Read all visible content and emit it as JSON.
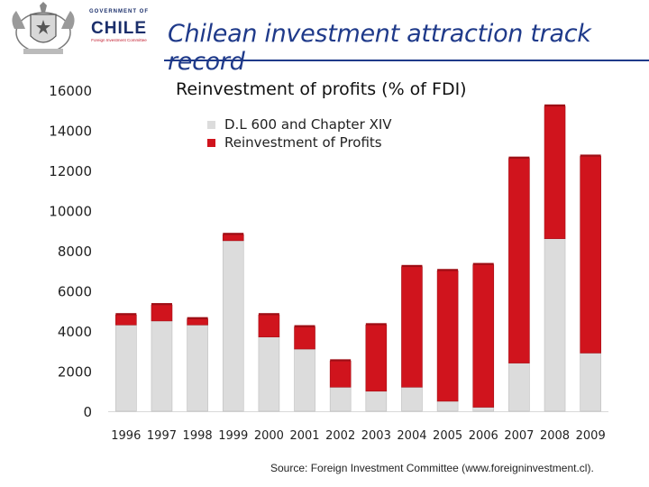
{
  "header": {
    "gov_line1": "GOVERNMENT OF",
    "gov_line2": "CHILE",
    "gov_line3": "Foreign Investment Committee",
    "title": "Chilean investment attraction track record",
    "logo_icon": "coat-of-arms-icon"
  },
  "colors": {
    "gray_series": "#dcdcdc",
    "red_series": "#d0141d",
    "title_blue": "#1f3a8a"
  },
  "chart_data": {
    "type": "bar",
    "stacked": true,
    "title": "Reinvestment of profits (% of FDI)",
    "xlabel": "",
    "ylabel": "",
    "ylim": [
      0,
      16000
    ],
    "yticks": [
      0,
      2000,
      4000,
      6000,
      8000,
      10000,
      12000,
      14000,
      16000
    ],
    "categories": [
      "1996",
      "1997",
      "1998",
      "1999",
      "2000",
      "2001",
      "2002",
      "2003",
      "2004",
      "2005",
      "2006",
      "2007",
      "2008",
      "2009"
    ],
    "series": [
      {
        "name": "D.L 600 and Chapter XIV",
        "color": "#dcdcdc",
        "values": [
          4300,
          4500,
          4300,
          8500,
          3700,
          3100,
          1200,
          1000,
          1200,
          500,
          200,
          2400,
          8600,
          2900
        ]
      },
      {
        "name": "Reinvestment of Profits",
        "color": "#d0141d",
        "values": [
          500,
          800,
          300,
          300,
          1100,
          1100,
          1300,
          3300,
          6000,
          6500,
          7100,
          10200,
          6600,
          9800
        ]
      }
    ],
    "legend_position": "top-left"
  },
  "footer": {
    "source": "Source: Foreign Investment Committee (www.foreigninvestment.cl)."
  }
}
